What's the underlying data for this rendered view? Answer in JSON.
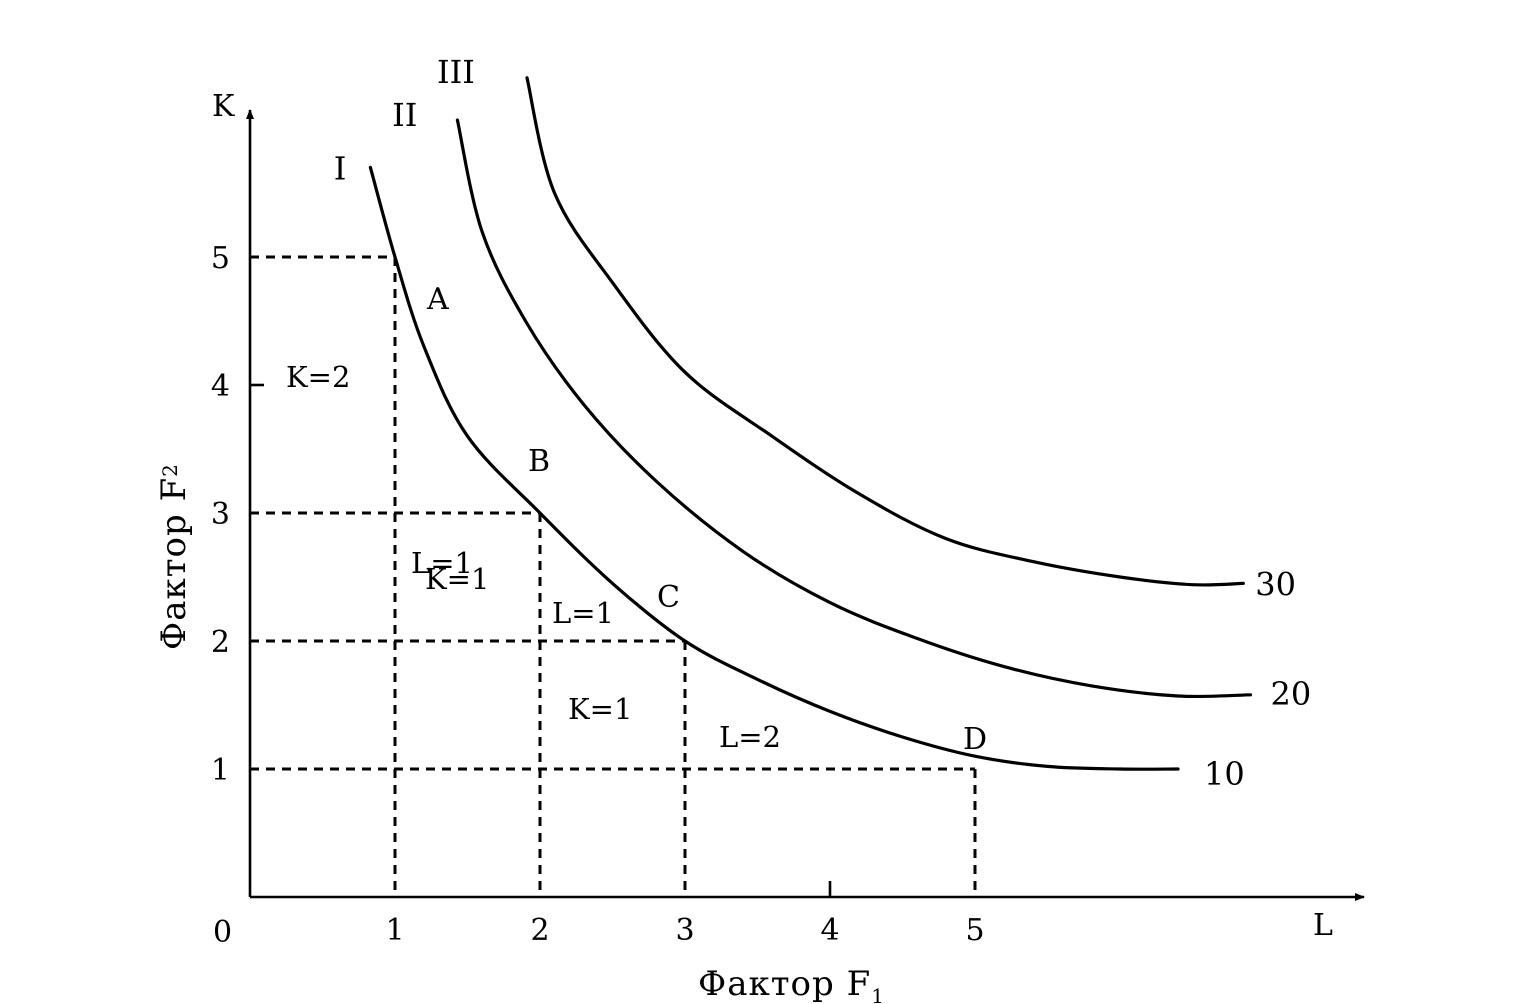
{
  "chart_data": {
    "type": "line",
    "x_axis": {
      "label": "Фактор F",
      "label_subscript": "1",
      "symbol": "L",
      "origin_label": "0",
      "ticks": [
        "1",
        "2",
        "3",
        "4",
        "5"
      ],
      "range": [
        0,
        7.8
      ]
    },
    "y_axis": {
      "label": "Фактор F",
      "label_subscript": "2",
      "symbol": "K",
      "ticks": [
        "1",
        "2",
        "3",
        "4",
        "5"
      ],
      "range": [
        0,
        5.9
      ]
    },
    "series": [
      {
        "name": "I",
        "end_label": "10",
        "points": [
          [
            0.83,
            5.7
          ],
          [
            1.0,
            5.0
          ],
          [
            1.2,
            4.3
          ],
          [
            1.5,
            3.6
          ],
          [
            2.0,
            3.0
          ],
          [
            2.5,
            2.45
          ],
          [
            3.0,
            2.0
          ],
          [
            3.5,
            1.7
          ],
          [
            4.0,
            1.45
          ],
          [
            4.5,
            1.25
          ],
          [
            5.0,
            1.1
          ],
          [
            5.5,
            1.02
          ],
          [
            6.0,
            1.0
          ],
          [
            6.4,
            1.0
          ]
        ]
      },
      {
        "name": "II",
        "end_label": "20",
        "points": [
          [
            1.43,
            6.07
          ],
          [
            1.6,
            5.2
          ],
          [
            1.9,
            4.5
          ],
          [
            2.3,
            3.85
          ],
          [
            2.8,
            3.25
          ],
          [
            3.4,
            2.7
          ],
          [
            4.0,
            2.3
          ],
          [
            4.6,
            2.02
          ],
          [
            5.2,
            1.8
          ],
          [
            5.8,
            1.65
          ],
          [
            6.4,
            1.57
          ],
          [
            6.9,
            1.58
          ]
        ]
      },
      {
        "name": "III",
        "end_label": "30",
        "points": [
          [
            1.91,
            6.4
          ],
          [
            2.1,
            5.5
          ],
          [
            2.5,
            4.8
          ],
          [
            3.0,
            4.1
          ],
          [
            3.6,
            3.6
          ],
          [
            4.2,
            3.15
          ],
          [
            4.8,
            2.8
          ],
          [
            5.4,
            2.62
          ],
          [
            6.0,
            2.5
          ],
          [
            6.5,
            2.44
          ],
          [
            6.85,
            2.45
          ]
        ]
      }
    ],
    "points": [
      {
        "name": "A",
        "x": 1,
        "y": 5
      },
      {
        "name": "B",
        "x": 2,
        "y": 3
      },
      {
        "name": "C",
        "x": 3,
        "y": 2
      },
      {
        "name": "D",
        "x": 5,
        "y": 1
      }
    ],
    "steps": [
      {
        "label": "K=2"
      },
      {
        "label": "L=1"
      },
      {
        "label": "K=1"
      },
      {
        "label": "L=1"
      },
      {
        "label": "K=1"
      },
      {
        "label": "L=2"
      }
    ]
  }
}
